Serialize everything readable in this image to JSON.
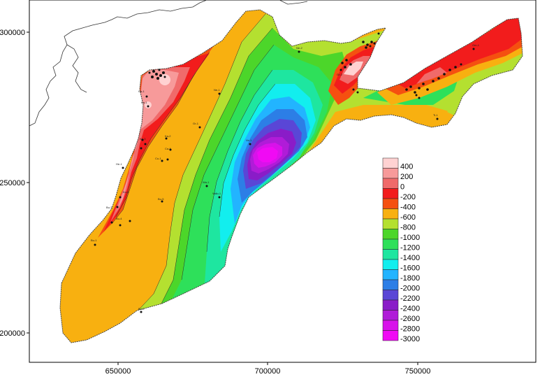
{
  "map": {
    "x_axis": {
      "ticks": [
        {
          "value": 650000,
          "label": "650000"
        },
        {
          "value": 700000,
          "label": "700000"
        },
        {
          "value": 750000,
          "label": "750000"
        }
      ]
    },
    "y_axis": {
      "ticks": [
        {
          "value": 300000,
          "label": "300000"
        },
        {
          "value": 250000,
          "label": "250000"
        },
        {
          "value": 200000,
          "label": "200000"
        }
      ]
    },
    "legend": {
      "placement": "right-middle",
      "entries": [
        {
          "label": "400",
          "color": "#ffd2d2"
        },
        {
          "label": "200",
          "color": "#f79a9a"
        },
        {
          "label": "0",
          "color": "#f06a6a"
        },
        {
          "label": "-200",
          "color": "#f21c1c"
        },
        {
          "label": "-400",
          "color": "#f55010"
        },
        {
          "label": "-600",
          "color": "#f8b010"
        },
        {
          "label": "-800",
          "color": "#b4e030"
        },
        {
          "label": "-1000",
          "color": "#4cd62a"
        },
        {
          "label": "-1200",
          "color": "#2ee05a"
        },
        {
          "label": "-1400",
          "color": "#1ee6a0"
        },
        {
          "label": "-1600",
          "color": "#12eeee"
        },
        {
          "label": "-1800",
          "color": "#22b4ff"
        },
        {
          "label": "-2000",
          "color": "#2c7ee6"
        },
        {
          "label": "-2200",
          "color": "#5a46d6"
        },
        {
          "label": "-2400",
          "color": "#8a1cc8"
        },
        {
          "label": "-2600",
          "color": "#b01cd8"
        },
        {
          "label": "-2800",
          "color": "#d812ea"
        },
        {
          "label": "-3000",
          "color": "#f00af4"
        }
      ]
    },
    "well_labels": [
      "Bu-1",
      "Bu-2",
      "Bu-3",
      "Bu-4",
      "Bu-5",
      "Cu-1",
      "Ca-1",
      "He-1",
      "Ha-1",
      "Ka-1",
      "Ka-2",
      "Ka-3",
      "Ku-1",
      "Ne-1",
      "Ne-2",
      "Ti-1",
      "Wa-1",
      "Ve-1",
      "Gr-1",
      "Gr-2",
      "Vallo-1",
      "Om-1"
    ]
  }
}
